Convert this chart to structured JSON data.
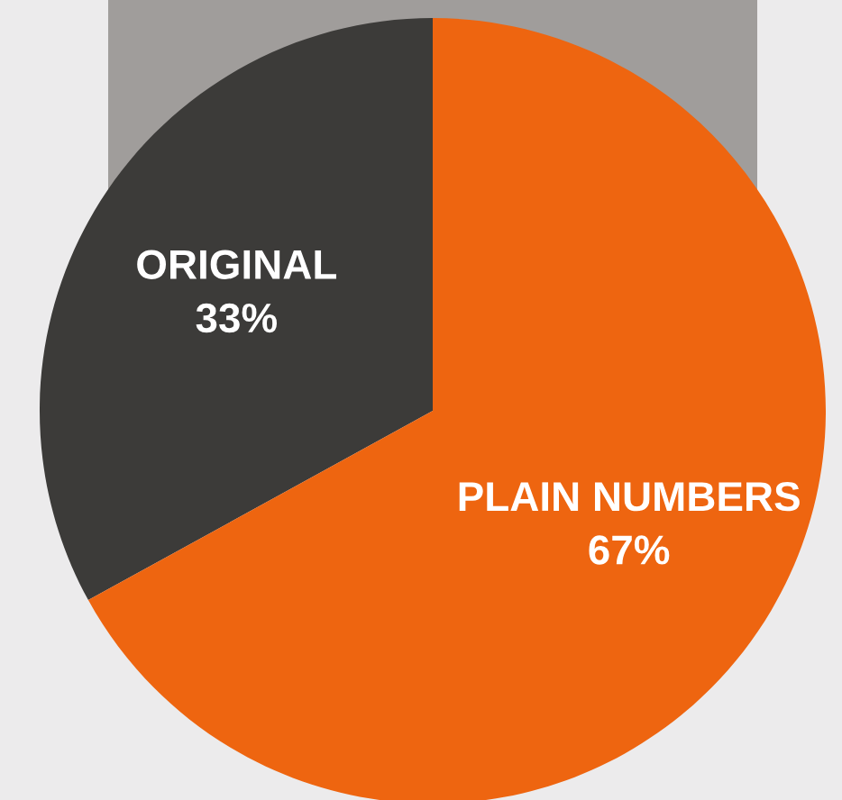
{
  "chart_data": {
    "type": "pie",
    "categories": [
      "ORIGINAL",
      "PLAIN NUMBERS"
    ],
    "values": [
      33,
      67
    ],
    "value_labels": [
      "33%",
      "67%"
    ],
    "colors": [
      "#3c3b39",
      "#ee6510"
    ]
  }
}
